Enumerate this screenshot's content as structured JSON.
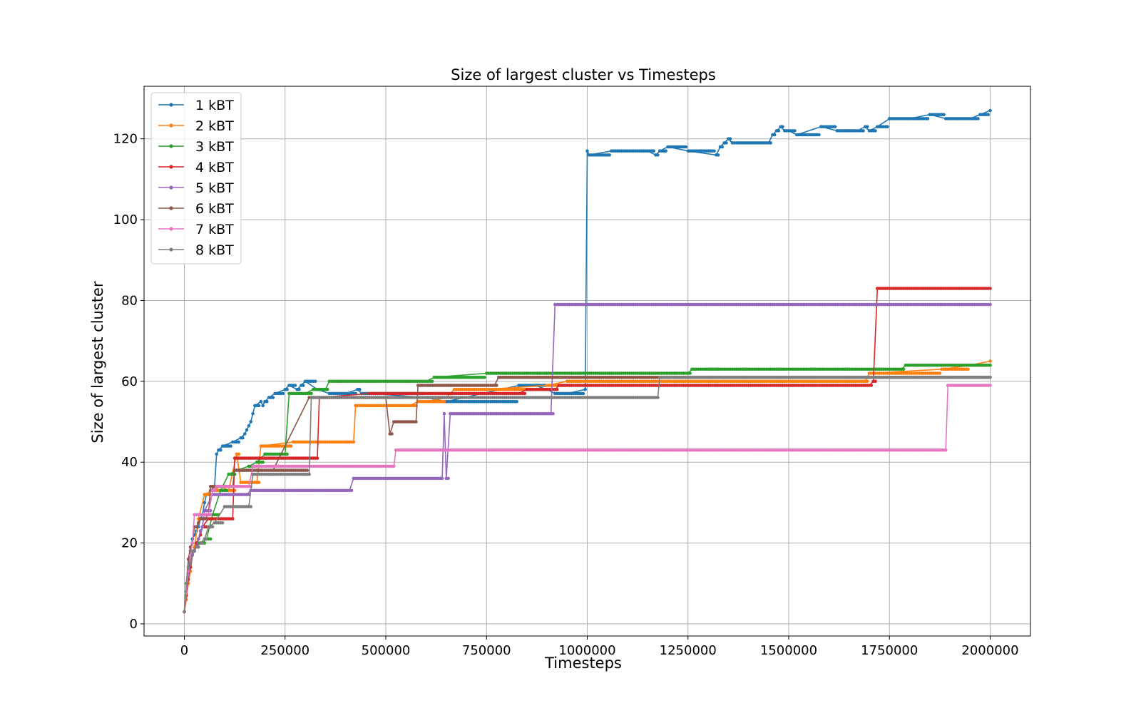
{
  "chart_data": {
    "type": "line",
    "title": "Size of largest cluster vs Timesteps",
    "xlabel": "Timesteps",
    "ylabel": "Size of largest cluster",
    "xlim": [
      -100000,
      2100000
    ],
    "ylim": [
      -3,
      133
    ],
    "xticks": [
      0,
      250000,
      500000,
      750000,
      1000000,
      1250000,
      1500000,
      1750000,
      2000000
    ],
    "yticks": [
      0,
      20,
      40,
      60,
      80,
      100,
      120
    ],
    "grid": true,
    "legend_position": "top-left",
    "markers": "dots",
    "series": [
      {
        "name": "1 kBT",
        "color": "#1f77b4",
        "x": [
          0,
          5000,
          10000,
          15000,
          20000,
          25000,
          30000,
          35000,
          40000,
          45000,
          50000,
          55000,
          65000,
          75000,
          80000,
          85000,
          95000,
          120000,
          140000,
          150000,
          155000,
          160000,
          165000,
          170000,
          175000,
          190000,
          195000,
          200000,
          210000,
          225000,
          250000,
          260000,
          280000,
          290000,
          300000,
          330000,
          360000,
          400000,
          430000,
          440000,
          460000,
          600000,
          650000,
          830000,
          870000,
          900000,
          920000,
          950000,
          995000,
          1000000,
          1005000,
          1060000,
          1150000,
          1170000,
          1180000,
          1200000,
          1250000,
          1320000,
          1330000,
          1340000,
          1350000,
          1360000,
          1450000,
          1460000,
          1470000,
          1480000,
          1490000,
          1500000,
          1520000,
          1580000,
          1620000,
          1670000,
          1690000,
          1700000,
          1720000,
          1750000,
          1800000,
          1850000,
          1890000,
          1950000,
          1975000,
          2000000
        ],
        "y": [
          3,
          10,
          14,
          18,
          21,
          22,
          23,
          24,
          26,
          27,
          30,
          32,
          33,
          34,
          42,
          43,
          44,
          45,
          46,
          47,
          48,
          49,
          50,
          52,
          54,
          55,
          54,
          55,
          56,
          57,
          58,
          59,
          58,
          59,
          60,
          58,
          57,
          57,
          58,
          57,
          57,
          56,
          55,
          59,
          59,
          58,
          57,
          57,
          58,
          117,
          116,
          117,
          117,
          116,
          117,
          118,
          117,
          116,
          118,
          119,
          120,
          119,
          119,
          121,
          122,
          123,
          122,
          122,
          121,
          123,
          122,
          122,
          123,
          122,
          123,
          125,
          125,
          126,
          125,
          125,
          126,
          127
        ]
      },
      {
        "name": "2 kBT",
        "color": "#ff7f0e",
        "x": [
          0,
          5000,
          10000,
          15000,
          20000,
          25000,
          35000,
          50000,
          70000,
          90000,
          110000,
          130000,
          140000,
          180000,
          190000,
          270000,
          330000,
          420000,
          425000,
          560000,
          580000,
          590000,
          600000,
          650000,
          670000,
          750000,
          900000,
          950000,
          1000000,
          1010000,
          1100000,
          1110000,
          1350000,
          1420000,
          1440000,
          1460000,
          1500000,
          1690000,
          1700000,
          1880000,
          1950000,
          2000000
        ],
        "y": [
          3,
          6,
          10,
          13,
          17,
          19,
          26,
          32,
          33,
          34,
          33,
          42,
          35,
          35,
          44,
          45,
          45,
          45,
          54,
          54,
          55,
          55,
          55,
          56,
          58,
          58,
          59,
          60,
          60,
          60,
          60,
          60,
          60,
          60,
          60,
          60,
          60,
          60,
          62,
          63,
          64,
          65
        ]
      },
      {
        "name": "3 kBT",
        "color": "#2ca02c",
        "x": [
          0,
          5000,
          10000,
          15000,
          20000,
          25000,
          30000,
          35000,
          40000,
          45000,
          55000,
          70000,
          90000,
          110000,
          130000,
          160000,
          180000,
          200000,
          250000,
          260000,
          300000,
          320000,
          350000,
          360000,
          400000,
          600000,
          620000,
          750000,
          800000,
          1000000,
          1250000,
          1260000,
          1500000,
          1780000,
          1790000,
          2000000
        ],
        "y": [
          3,
          8,
          12,
          14,
          17,
          18,
          19,
          20,
          20,
          20,
          21,
          27,
          33,
          37,
          38,
          39,
          40,
          42,
          42,
          57,
          57,
          58,
          58,
          60,
          60,
          60,
          61,
          62,
          62,
          62,
          62,
          63,
          63,
          63,
          64,
          64
        ]
      },
      {
        "name": "4 kBT",
        "color": "#d62728",
        "x": [
          0,
          5000,
          10000,
          15000,
          20000,
          25000,
          30000,
          35000,
          40000,
          45000,
          60000,
          120000,
          125000,
          150000,
          330000,
          335000,
          460000,
          520000,
          830000,
          850000,
          900000,
          920000,
          930000,
          1200000,
          1700000,
          1710000,
          1720000,
          2000000
        ],
        "y": [
          3,
          7,
          11,
          14,
          17,
          18,
          20,
          21,
          22,
          24,
          26,
          26,
          41,
          41,
          41,
          56,
          57,
          57,
          57,
          58,
          58,
          58,
          59,
          59,
          59,
          60,
          83,
          83
        ]
      },
      {
        "name": "5 kBT",
        "color": "#9467bd",
        "x": [
          0,
          5000,
          10000,
          15000,
          20000,
          25000,
          30000,
          35000,
          40000,
          45000,
          50000,
          70000,
          155000,
          165000,
          410000,
          420000,
          640000,
          645000,
          650000,
          660000,
          910000,
          920000,
          2000000
        ],
        "y": [
          3,
          8,
          12,
          15,
          17,
          18,
          19,
          21,
          23,
          24,
          28,
          32,
          32,
          33,
          33,
          36,
          36,
          52,
          36,
          52,
          52,
          79,
          79
        ]
      },
      {
        "name": "6 kBT",
        "color": "#8c564b",
        "x": [
          0,
          5000,
          10000,
          15000,
          20000,
          25000,
          30000,
          35000,
          40000,
          50000,
          60000,
          65000,
          80000,
          120000,
          125000,
          130000,
          220000,
          310000,
          500000,
          510000,
          520000,
          575000,
          580000,
          770000,
          780000,
          1100000,
          1200000,
          1700000,
          2000000
        ],
        "y": [
          3,
          10,
          16,
          19,
          20,
          24,
          24,
          25,
          26,
          26,
          27,
          34,
          34,
          34,
          38,
          38,
          38,
          56,
          56,
          47,
          50,
          50,
          59,
          59,
          61,
          61,
          61,
          61,
          61
        ]
      },
      {
        "name": "7 kBT",
        "color": "#e377c2",
        "x": [
          0,
          5000,
          10000,
          15000,
          20000,
          25000,
          30000,
          60000,
          70000,
          80000,
          160000,
          170000,
          520000,
          525000,
          1890000,
          1895000,
          2000000
        ],
        "y": [
          3,
          8,
          13,
          17,
          20,
          27,
          27,
          27,
          33,
          34,
          34,
          39,
          39,
          43,
          43,
          59,
          59
        ]
      },
      {
        "name": "8 kBT",
        "color": "#7f7f7f",
        "x": [
          0,
          5000,
          10000,
          15000,
          20000,
          30000,
          40000,
          50000,
          60000,
          75000,
          100000,
          160000,
          170000,
          310000,
          315000,
          600000,
          700000,
          1000000,
          1175000,
          1180000,
          2000000
        ],
        "y": [
          3,
          10,
          14,
          15,
          18,
          19,
          20,
          21,
          24,
          25,
          29,
          29,
          37,
          37,
          56,
          56,
          56,
          56,
          56,
          61,
          61
        ]
      }
    ]
  }
}
